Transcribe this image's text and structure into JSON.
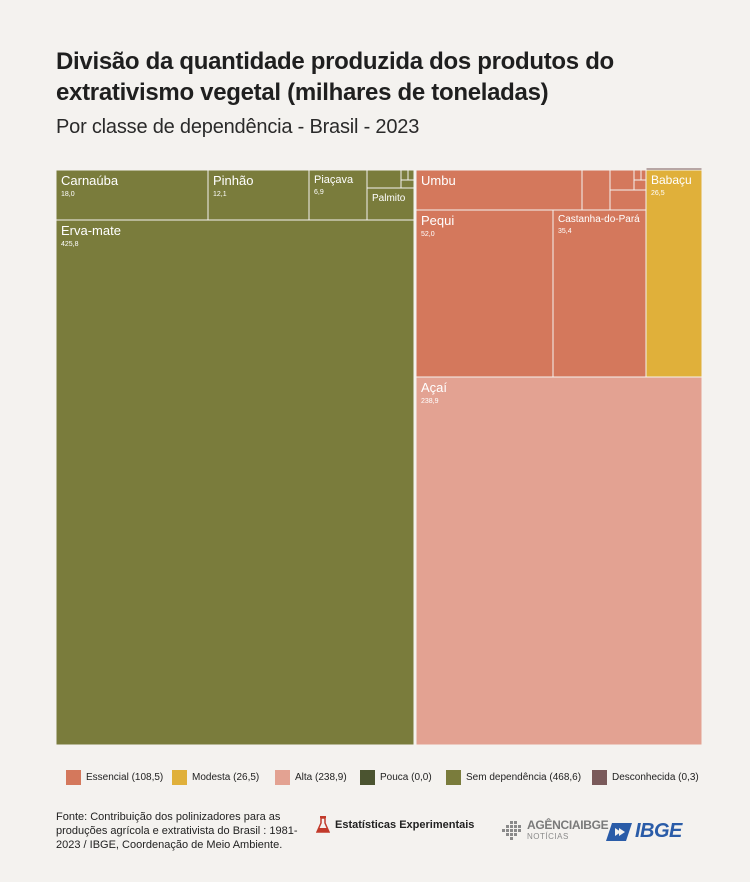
{
  "header": {
    "title": "Divisão da quantidade produzida dos produtos do extrativismo vegetal (milhares  de toneladas)",
    "subtitle": "Por classe de dependência - Brasil - 2023"
  },
  "chart_data": {
    "type": "treemap",
    "unit": "milhares de toneladas",
    "categories": [
      {
        "key": "essencial",
        "label": "Essencial (108,5)",
        "total": 108.5,
        "color": "#d4785c"
      },
      {
        "key": "modesta",
        "label": "Modesta (26,5)",
        "total": 26.5,
        "color": "#e0b03a"
      },
      {
        "key": "alta",
        "label": "Alta (238,9)",
        "total": 238.9,
        "color": "#e3a292"
      },
      {
        "key": "pouca",
        "label": "Pouca (0,0)",
        "total": 0.0,
        "color": "#4b5430"
      },
      {
        "key": "sem",
        "label": "Sem dependência (468,6)",
        "total": 468.6,
        "color": "#7a7c3c"
      },
      {
        "key": "desconhecida",
        "label": "Desconhecida (0,3)",
        "total": 0.3,
        "color": "#7a5a5a"
      }
    ],
    "items": [
      {
        "name": "Carnaúba",
        "category": "sem",
        "value": 18.0,
        "value_label": "18,0"
      },
      {
        "name": "Pinhão",
        "category": "sem",
        "value": 12.1,
        "value_label": "12,1"
      },
      {
        "name": "Piaçava",
        "category": "sem",
        "value": 6.9,
        "value_label": "6,9"
      },
      {
        "name": "Palmito",
        "category": "sem",
        "value": 4.0,
        "value_label": ""
      },
      {
        "name": "Erva-mate",
        "category": "sem",
        "value": 425.8,
        "value_label": "425,8"
      },
      {
        "name": "Umbu",
        "category": "essencial",
        "value": 12.0,
        "value_label": ""
      },
      {
        "name": "Pequi",
        "category": "essencial",
        "value": 52.0,
        "value_label": "52,0"
      },
      {
        "name": "Castanha-do-Pará",
        "category": "essencial",
        "value": 35.4,
        "value_label": "35,4"
      },
      {
        "name": "Açaí",
        "category": "alta",
        "value": 238.9,
        "value_label": "238,9"
      },
      {
        "name": "Babaçu",
        "category": "modesta",
        "value": 26.5,
        "value_label": "26,5"
      }
    ]
  },
  "source": {
    "text": "Fonte: Contribuição dos polinizadores para as produções agrícola e extrativista do Brasil : 1981-2023 / IBGE, Coordenação de Meio Ambiente."
  },
  "logos": {
    "experimental": "Estatísticas Experimentais",
    "agencia_main": "AGÊNCIA",
    "agencia_bold": "IBGE",
    "agencia_sub": "NOTÍCIAS",
    "ibge": "IBGE"
  }
}
